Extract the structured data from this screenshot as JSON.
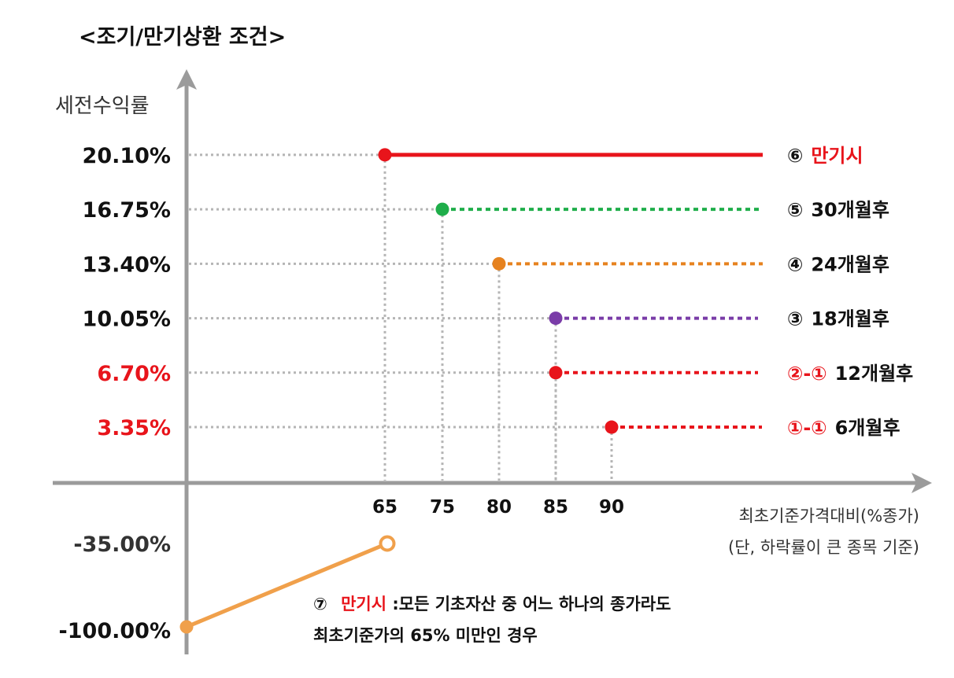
{
  "title": "<조기/만기상환 조건>",
  "chart_data": {
    "type": "line",
    "ylabel": "세전수익률",
    "xlabel": "최초기준가격대비(%종가)",
    "xlabel_note": "(단, 하락률이 큰 종목 기준)",
    "x_ticks": [
      "65",
      "75",
      "80",
      "85",
      "90"
    ],
    "y_ticks": [
      "20.10%",
      "16.75%",
      "13.40%",
      "10.05%",
      "6.70%",
      "3.35%",
      "-35.00%",
      "-100.00%"
    ],
    "grid": "dotted",
    "series": [
      {
        "name": "⑥ 만기시",
        "barrier": 65,
        "return_pct": 20.1,
        "color": "#e8141b",
        "style": "solid"
      },
      {
        "name": "⑤ 30개월후",
        "barrier": 75,
        "return_pct": 16.75,
        "color": "#1fae4a",
        "style": "dotted"
      },
      {
        "name": "④ 24개월후",
        "barrier": 80,
        "return_pct": 13.4,
        "color": "#e6821f",
        "style": "dotted"
      },
      {
        "name": "③ 18개월후",
        "barrier": 85,
        "return_pct": 10.05,
        "color": "#7a3ca8",
        "style": "dotted"
      },
      {
        "name": "②-① 12개월후",
        "barrier": 85,
        "return_pct": 6.7,
        "color": "#e8141b",
        "style": "dotted"
      },
      {
        "name": "①-① 6개월후",
        "barrier": 90,
        "return_pct": 3.35,
        "color": "#e8141b",
        "style": "dotted"
      }
    ],
    "loss_line": {
      "from": [
        0,
        -100.0
      ],
      "to": [
        65,
        -35.0
      ],
      "open_end": true,
      "color": "#f0a04b"
    },
    "legend_labels": [
      {
        "marker": "⑥",
        "text": "만기시"
      },
      {
        "marker": "⑤",
        "text": "30개월후"
      },
      {
        "marker": "④",
        "text": "24개월후"
      },
      {
        "marker": "③",
        "text": "18개월후"
      },
      {
        "marker": "②-①",
        "text": "12개월후"
      },
      {
        "marker": "①-①",
        "text": "6개월후"
      }
    ]
  },
  "note": {
    "marker": "⑦",
    "highlight": "만기시",
    "line1_rest": ":모든 기초자산 중 어느 하나의 종가라도",
    "line2": "최초기준가의 65% 미만인 경우"
  },
  "colors": {
    "red": "#e8141b",
    "axis": "#9b9b9b",
    "grid": "#b5b5b5",
    "black": "#111111"
  }
}
